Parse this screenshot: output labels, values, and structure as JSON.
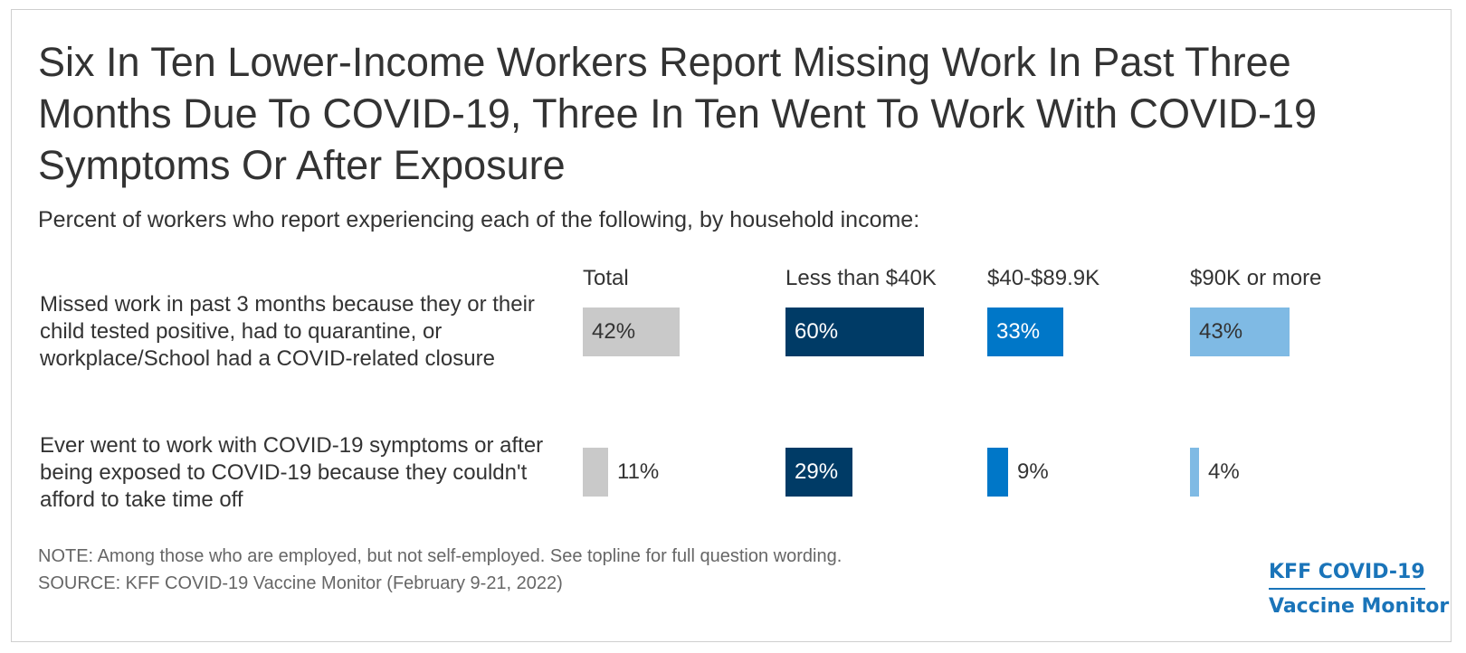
{
  "chart_data": {
    "type": "bar",
    "title": "Six In Ten Lower-Income Workers Report Missing Work In Past Three Months Due To COVID-19, Three In Ten Went To Work With COVID-19 Symptoms Or After Exposure",
    "subtitle": "Percent of workers who report experiencing each of the following, by household income:",
    "categories": [
      "Missed work in past 3 months because they or their child tested positive, had to quarantine, or workplace/School had a COVID-related closure",
      "Ever went to work with COVID-19 symptoms or after being exposed to COVID-19 because they couldn't afford to take time off"
    ],
    "series": [
      {
        "name": "Total",
        "color": "#c9c9c9",
        "values": [
          42,
          11
        ],
        "labels": [
          "42%",
          "11%"
        ]
      },
      {
        "name": "Less than $40K",
        "color": "#003b66",
        "values": [
          60,
          29
        ],
        "labels": [
          "60%",
          "29%"
        ]
      },
      {
        "name": "$40-$89.9K",
        "color": "#0077c8",
        "values": [
          33,
          9
        ],
        "labels": [
          "33%",
          "9%"
        ]
      },
      {
        "name": "$90K or more",
        "color": "#7fbae4",
        "values": [
          43,
          4
        ],
        "labels": [
          "43%",
          "4%"
        ]
      }
    ],
    "xlim": [
      0,
      100
    ]
  },
  "footer": {
    "note": "NOTE: Among those who are employed, but not self-employed. See topline for full question wording.",
    "source": "SOURCE: KFF COVID-19 Vaccine Monitor (February 9-21, 2022)"
  },
  "logo": {
    "line1": "KFF COVID-19",
    "line2": "Vaccine Monitor"
  }
}
